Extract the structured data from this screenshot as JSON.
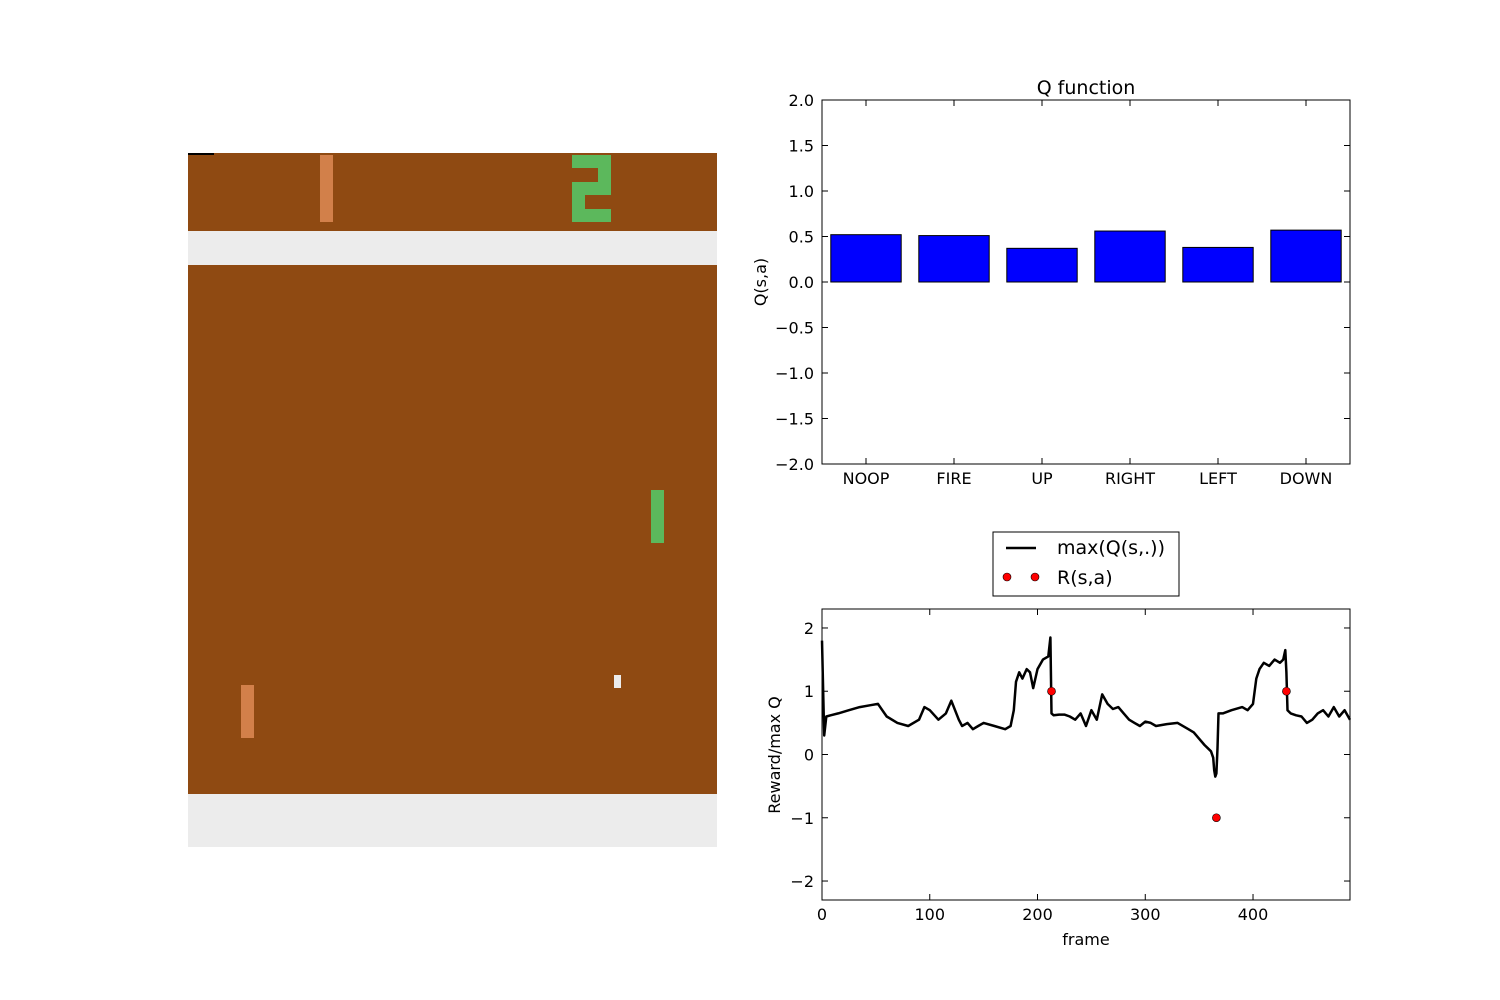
{
  "game": {
    "name": "Pong",
    "score_left": "",
    "score_right": "2",
    "colors": {
      "field": "#8f4a12",
      "wall": "#ececec",
      "opponent_paddle": "#d2804a",
      "agent_paddle": "#5cb85c",
      "score": "#5cb85c",
      "ball": "#ececec"
    }
  },
  "chart_data": [
    {
      "type": "bar",
      "title": "Q function",
      "xlabel": "",
      "ylabel": "Q(s,a)",
      "categories": [
        "NOOP",
        "FIRE",
        "UP",
        "RIGHT",
        "LEFT",
        "DOWN"
      ],
      "values": [
        0.52,
        0.51,
        0.37,
        0.56,
        0.38,
        0.57
      ],
      "ylim": [
        -2.0,
        2.0
      ],
      "yticks": [
        "2.0",
        "1.5",
        "1.0",
        "0.5",
        "0.0",
        "−0.5",
        "−1.0",
        "−1.5",
        "−2.0"
      ],
      "color": "#0000ff",
      "grid": false
    },
    {
      "type": "line",
      "title": "",
      "xlabel": "frame",
      "ylabel": "Reward/max Q",
      "xlim": [
        0,
        490
      ],
      "ylim": [
        -2.3,
        2.3
      ],
      "xticks": [
        "0",
        "100",
        "200",
        "300",
        "400"
      ],
      "yticks": [
        "2",
        "1",
        "0",
        "−1",
        "−2"
      ],
      "legend_position": "above plot, center",
      "series": [
        {
          "name": "max(Q(s,.))",
          "style": "line",
          "color": "#000000",
          "x": [
            0,
            2,
            4,
            8,
            15,
            25,
            35,
            45,
            52,
            56,
            60,
            70,
            80,
            90,
            95,
            100,
            108,
            115,
            120,
            127,
            130,
            135,
            140,
            145,
            150,
            160,
            170,
            175,
            178,
            180,
            183,
            186,
            190,
            193,
            196,
            200,
            205,
            210,
            212,
            213,
            215,
            220,
            225,
            230,
            235,
            240,
            245,
            250,
            255,
            260,
            265,
            270,
            275,
            280,
            285,
            290,
            295,
            300,
            305,
            310,
            320,
            330,
            340,
            345,
            350,
            355,
            358,
            361,
            363,
            364,
            365,
            366,
            367,
            368,
            372,
            380,
            390,
            395,
            400,
            403,
            406,
            410,
            415,
            420,
            425,
            428,
            430,
            431,
            432,
            435,
            440,
            445,
            450,
            455,
            460,
            465,
            470,
            475,
            480,
            485,
            490
          ],
          "y": [
            1.8,
            0.3,
            0.6,
            0.62,
            0.65,
            0.7,
            0.75,
            0.78,
            0.8,
            0.7,
            0.6,
            0.5,
            0.45,
            0.55,
            0.75,
            0.7,
            0.55,
            0.65,
            0.85,
            0.55,
            0.45,
            0.5,
            0.4,
            0.45,
            0.5,
            0.45,
            0.4,
            0.45,
            0.7,
            1.15,
            1.3,
            1.2,
            1.35,
            1.3,
            1.05,
            1.35,
            1.5,
            1.55,
            1.85,
            0.65,
            0.62,
            0.63,
            0.63,
            0.6,
            0.55,
            0.65,
            0.45,
            0.7,
            0.55,
            0.95,
            0.8,
            0.72,
            0.75,
            0.65,
            0.55,
            0.5,
            0.45,
            0.52,
            0.5,
            0.45,
            0.48,
            0.5,
            0.4,
            0.35,
            0.25,
            0.15,
            0.1,
            0.05,
            -0.05,
            -0.25,
            -0.35,
            -0.3,
            0.1,
            0.65,
            0.65,
            0.7,
            0.75,
            0.7,
            0.8,
            1.2,
            1.35,
            1.45,
            1.4,
            1.5,
            1.45,
            1.5,
            1.65,
            1.3,
            0.7,
            0.65,
            0.62,
            0.6,
            0.5,
            0.55,
            0.65,
            0.7,
            0.6,
            0.75,
            0.6,
            0.7,
            0.55
          ]
        },
        {
          "name": "R(s,a)",
          "style": "markers",
          "color": "#ff0000",
          "x": [
            213,
            366,
            431
          ],
          "y": [
            1,
            -1,
            1
          ]
        }
      ]
    }
  ]
}
